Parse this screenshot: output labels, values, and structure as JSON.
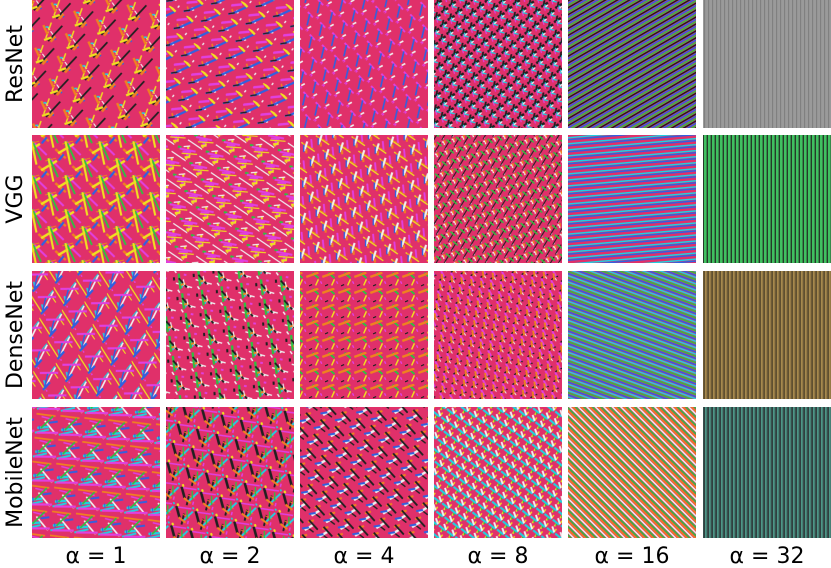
{
  "rows": [
    "ResNet",
    "VGG",
    "DenseNet",
    "MobileNet"
  ],
  "columns": [
    "α = 1",
    "α = 2",
    "α = 4",
    "α = 8",
    "α = 16",
    "α = 32"
  ]
}
